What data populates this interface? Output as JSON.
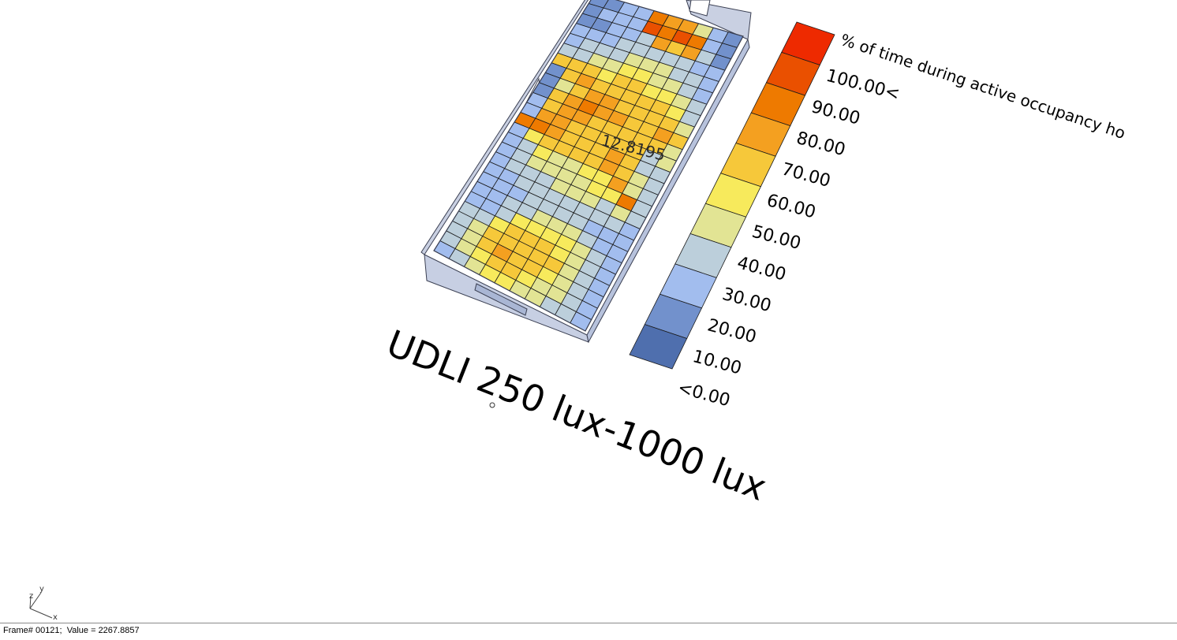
{
  "scene": {
    "title": "UDLI 250 lux-1000 lux",
    "center_label": "12.8195",
    "colors": {
      "room_edge": "#3a3f52",
      "room_fill": "#b9c3dc",
      "grid_line": "#1a1a1a"
    },
    "grid": {
      "rows": 26,
      "cols": 10,
      "values": [
        [
          10,
          10,
          20,
          20,
          80,
          70,
          70,
          40,
          20,
          10
        ],
        [
          10,
          20,
          20,
          20,
          90,
          80,
          90,
          80,
          20,
          10
        ],
        [
          10,
          10,
          20,
          20,
          30,
          70,
          60,
          70,
          30,
          10
        ],
        [
          20,
          20,
          20,
          30,
          30,
          30,
          30,
          30,
          20,
          20
        ],
        [
          20,
          30,
          30,
          30,
          40,
          40,
          40,
          30,
          30,
          20
        ],
        [
          30,
          30,
          40,
          40,
          50,
          50,
          40,
          40,
          30,
          20
        ],
        [
          60,
          60,
          60,
          50,
          60,
          60,
          50,
          50,
          40,
          30
        ],
        [
          10,
          60,
          70,
          60,
          60,
          60,
          60,
          60,
          50,
          30
        ],
        [
          10,
          40,
          60,
          70,
          70,
          60,
          60,
          60,
          60,
          40
        ],
        [
          10,
          60,
          70,
          80,
          70,
          70,
          60,
          60,
          70,
          60
        ],
        [
          20,
          60,
          70,
          70,
          60,
          60,
          60,
          60,
          60,
          40
        ],
        [
          20,
          70,
          70,
          60,
          60,
          60,
          60,
          60,
          30,
          40
        ],
        [
          80,
          80,
          70,
          60,
          60,
          60,
          70,
          60,
          30,
          30
        ],
        [
          20,
          50,
          60,
          60,
          60,
          60,
          70,
          60,
          40,
          30
        ],
        [
          20,
          30,
          50,
          40,
          40,
          50,
          50,
          70,
          40,
          30
        ],
        [
          20,
          30,
          40,
          40,
          40,
          40,
          50,
          50,
          80,
          30
        ],
        [
          20,
          30,
          30,
          30,
          40,
          40,
          40,
          30,
          40,
          30
        ],
        [
          20,
          20,
          30,
          30,
          30,
          30,
          30,
          30,
          30,
          20
        ],
        [
          20,
          20,
          20,
          30,
          30,
          30,
          30,
          20,
          20,
          20
        ],
        [
          20,
          20,
          30,
          30,
          40,
          40,
          40,
          30,
          20,
          20
        ],
        [
          20,
          20,
          30,
          50,
          50,
          50,
          50,
          40,
          30,
          20
        ],
        [
          30,
          30,
          50,
          60,
          60,
          60,
          50,
          40,
          30,
          20
        ],
        [
          30,
          40,
          60,
          60,
          60,
          60,
          60,
          40,
          30,
          20
        ],
        [
          30,
          40,
          60,
          70,
          60,
          60,
          50,
          40,
          30,
          20
        ],
        [
          30,
          40,
          50,
          60,
          60,
          50,
          40,
          40,
          30,
          20
        ],
        [
          20,
          30,
          40,
          50,
          50,
          40,
          40,
          30,
          30,
          20
        ]
      ]
    },
    "legend": {
      "header": "% of time during active occupancy ho",
      "labels": [
        "100.00<",
        "90.00",
        "80.00",
        "70.00",
        "60.00",
        "50.00",
        "40.00",
        "30.00",
        "20.00",
        "10.00",
        "<0.00"
      ],
      "colors": [
        "#ee2a00",
        "#ea5000",
        "#ee7a00",
        "#f4a020",
        "#f6c83a",
        "#f7ea5c",
        "#e2e494",
        "#bccfdb",
        "#a2bdee",
        "#7291cc",
        "#4f6fae"
      ]
    },
    "axes_gizmo": {
      "z": "z",
      "y": "y",
      "x": "x"
    }
  },
  "status": {
    "text": "Frame# 00121;  Value = 2267.8857"
  }
}
